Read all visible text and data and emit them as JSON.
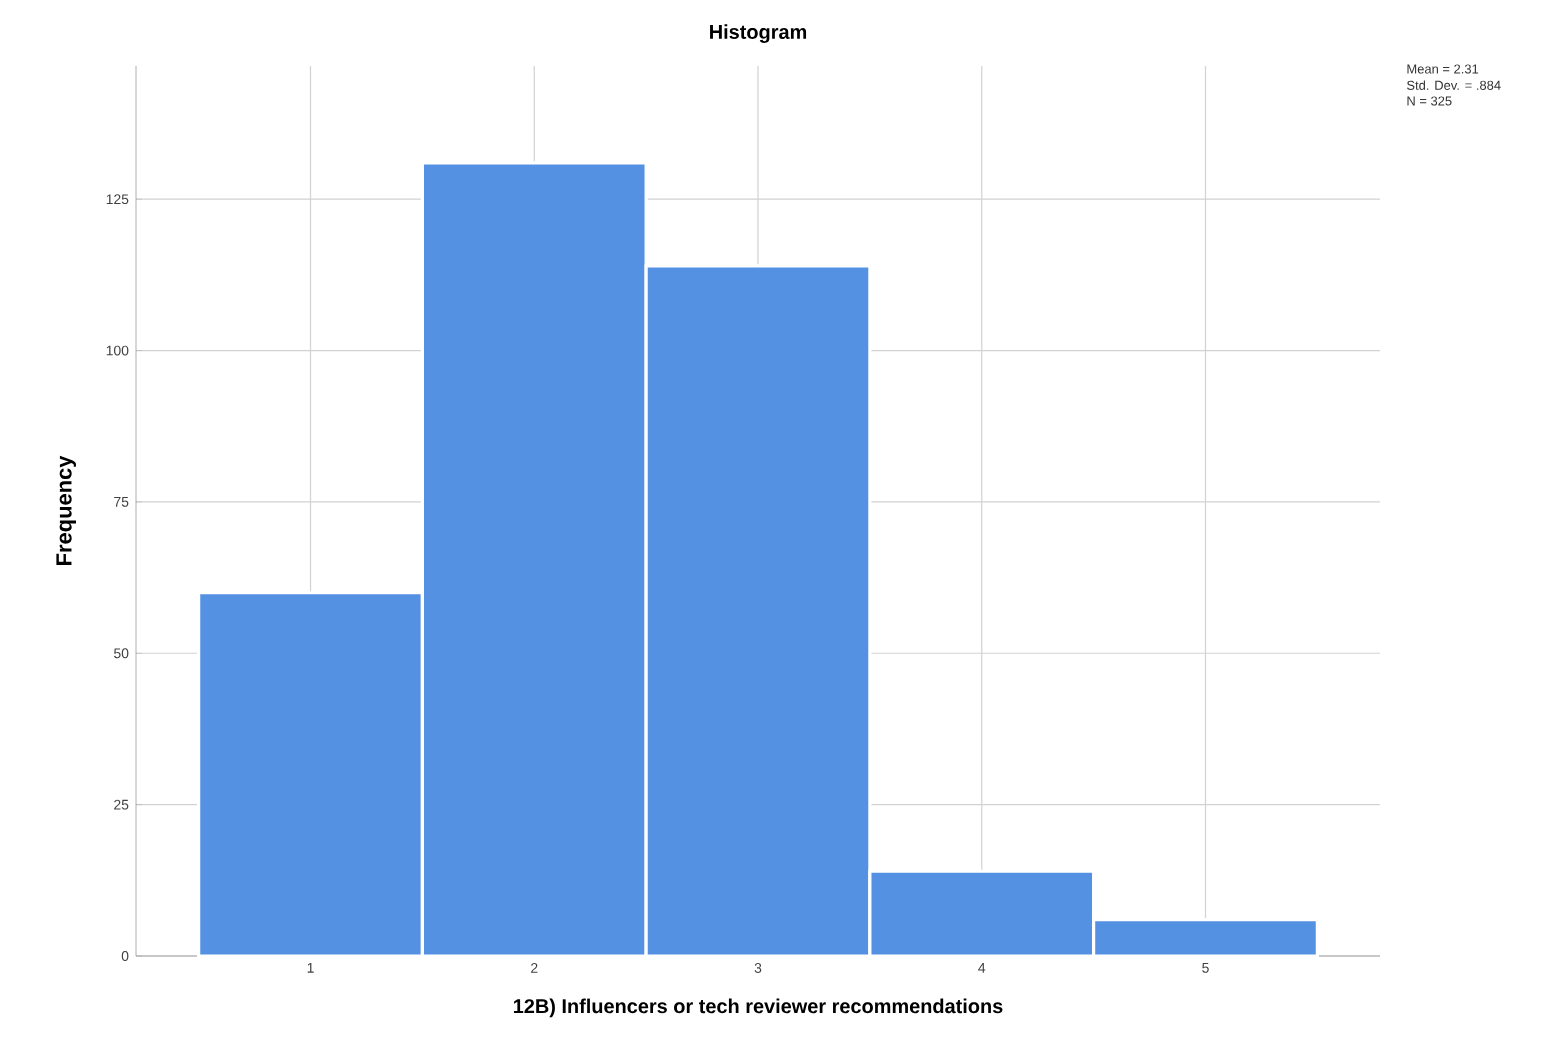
{
  "chart_data": {
    "type": "histogram",
    "title": "Histogram",
    "xlabel": "12B) Influencers or tech reviewer recommendations",
    "ylabel": "Frequency",
    "bins": [
      0.5,
      1.5,
      2.5,
      3.5,
      4.5,
      5.5
    ],
    "values": [
      60,
      131,
      114,
      14,
      6
    ],
    "color": "#5591e2",
    "xlim": [
      0.22,
      5.78
    ],
    "ylim": [
      0,
      147
    ],
    "xticks": [
      1,
      2,
      3,
      4,
      5
    ],
    "yticks": [
      0,
      25,
      50,
      75,
      100,
      125
    ],
    "grid": true,
    "annotations": [
      "Mean = 2.31",
      "Std. Dev. = .884",
      "N = 325"
    ]
  }
}
